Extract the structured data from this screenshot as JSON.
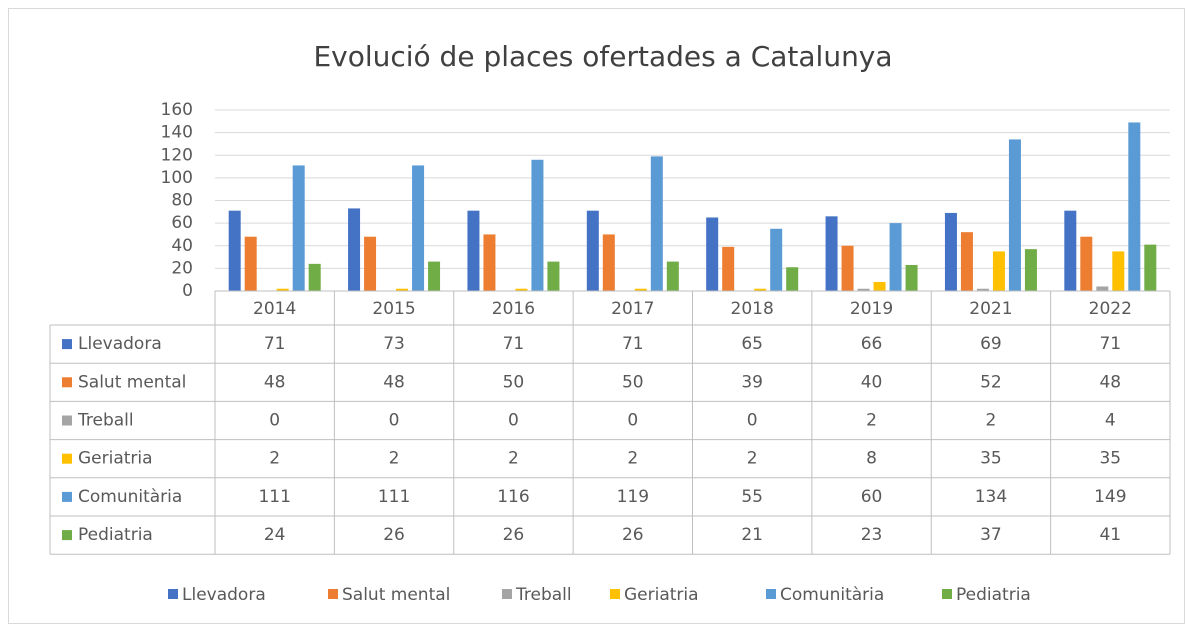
{
  "chart_data": {
    "type": "bar",
    "title": "Evolució de places ofertades a Catalunya",
    "categories": [
      "2014",
      "2015",
      "2016",
      "2017",
      "2018",
      "2019",
      "2021",
      "2022"
    ],
    "series": [
      {
        "name": "Llevadora",
        "color": "#4472c4",
        "values": [
          71,
          73,
          71,
          71,
          65,
          66,
          69,
          71
        ]
      },
      {
        "name": "Salut mental",
        "color": "#ed7d31",
        "values": [
          48,
          48,
          50,
          50,
          39,
          40,
          52,
          48
        ]
      },
      {
        "name": "Treball",
        "color": "#a5a5a5",
        "values": [
          0,
          0,
          0,
          0,
          0,
          2,
          2,
          4
        ]
      },
      {
        "name": "Geriatria",
        "color": "#ffc000",
        "values": [
          2,
          2,
          2,
          2,
          2,
          8,
          35,
          35
        ]
      },
      {
        "name": "Comunitària",
        "color": "#5b9bd5",
        "values": [
          111,
          111,
          116,
          119,
          55,
          60,
          134,
          149
        ]
      },
      {
        "name": "Pediatria",
        "color": "#70ad47",
        "values": [
          24,
          26,
          26,
          26,
          21,
          23,
          37,
          41
        ]
      }
    ],
    "ylim": [
      0,
      160
    ],
    "yticks": [
      0,
      20,
      40,
      60,
      80,
      100,
      120,
      140,
      160
    ],
    "grid": true,
    "legend": "bottom"
  }
}
